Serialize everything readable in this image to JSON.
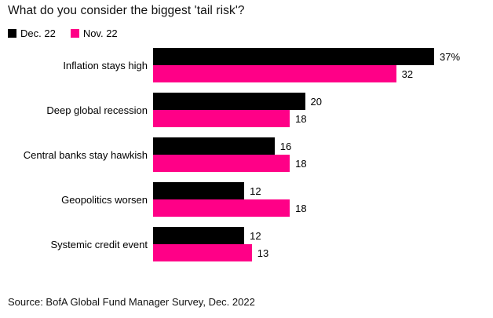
{
  "chart_data": {
    "type": "bar",
    "orientation": "horizontal",
    "title": "What do you consider the biggest 'tail risk'?",
    "categories": [
      "Inflation stays high",
      "Deep global recession",
      "Central banks stay hawkish",
      "Geopolitics worsen",
      "Systemic credit event"
    ],
    "series": [
      {
        "name": "Dec. 22",
        "color": "#000000",
        "values": [
          37,
          20,
          16,
          12,
          12
        ],
        "labels": [
          "37%",
          "20",
          "16",
          "12",
          "12"
        ]
      },
      {
        "name": "Nov. 22",
        "color": "#FF0087",
        "values": [
          32,
          18,
          18,
          18,
          13
        ],
        "labels": [
          "32",
          "18",
          "18",
          "18",
          "13"
        ]
      }
    ],
    "xlim": [
      0,
      37
    ],
    "grid": "off",
    "legend_position": "top-left",
    "value_labels": "outside-end",
    "source": "Source: BofA Global Fund Manager Survey, Dec. 2022"
  }
}
